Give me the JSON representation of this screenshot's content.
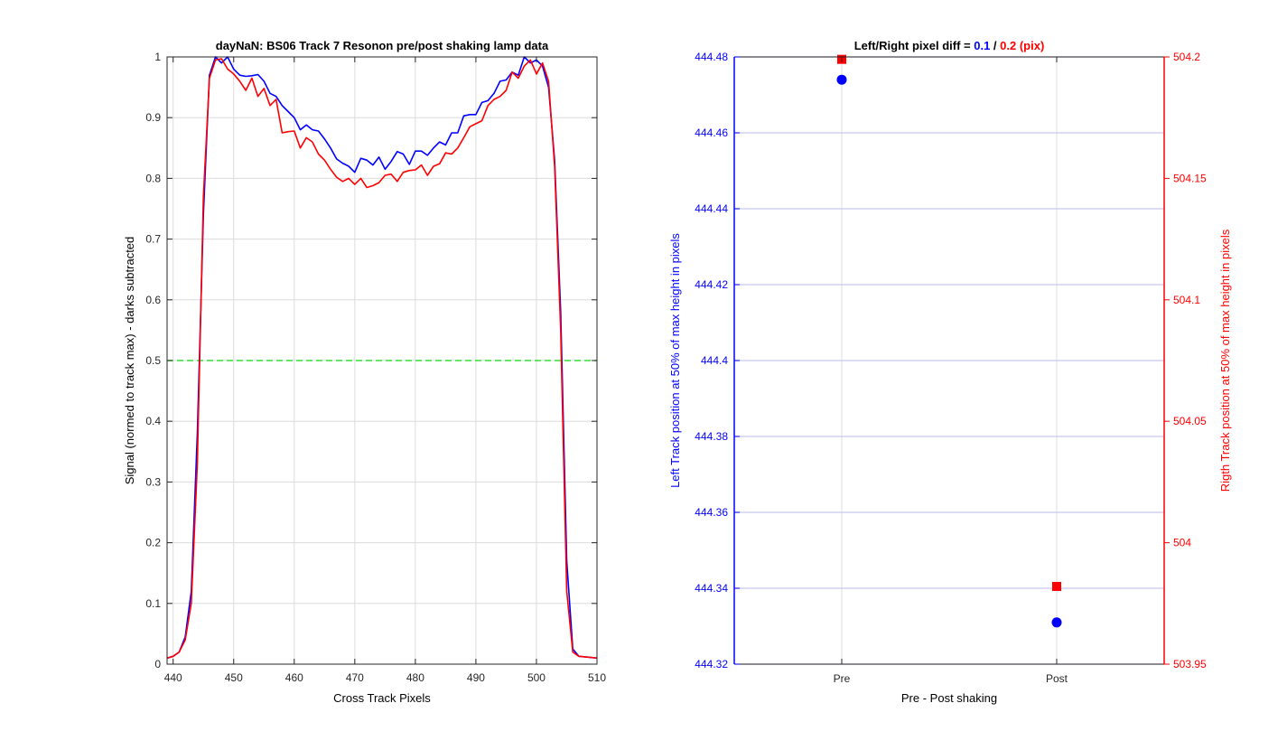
{
  "chart_data": [
    {
      "type": "line",
      "title": "dayNaN: BS06  Track 7 Resonon pre/post shaking lamp data",
      "xlabel": "Cross Track Pixels",
      "ylabel": "Signal (normed to track max) - darks subtracted",
      "xlim": [
        439,
        510
      ],
      "ylim": [
        0,
        1
      ],
      "xticks": [
        "440",
        "450",
        "460",
        "470",
        "480",
        "490",
        "500",
        "510"
      ],
      "yticks": [
        "0",
        "0.1",
        "0.2",
        "0.3",
        "0.4",
        "0.5",
        "0.6",
        "0.7",
        "0.8",
        "0.9",
        "1"
      ],
      "grid": true,
      "reference_line": {
        "y": 0.5,
        "color": "#33dd33",
        "style": "dashed"
      },
      "series": [
        {
          "color": "#0000ff",
          "x": [
            439,
            440,
            441,
            442,
            443,
            444,
            445,
            446,
            447,
            448,
            449,
            450,
            451,
            452,
            453,
            454,
            455,
            456,
            457,
            458,
            459,
            460,
            461,
            462,
            463,
            464,
            465,
            466,
            467,
            468,
            469,
            470,
            471,
            472,
            473,
            474,
            475,
            476,
            477,
            478,
            479,
            480,
            481,
            482,
            483,
            484,
            485,
            486,
            487,
            488,
            489,
            490,
            491,
            492,
            493,
            494,
            495,
            496,
            497,
            498,
            499,
            500,
            501,
            502,
            503,
            504,
            505,
            506,
            507,
            508,
            509,
            510
          ],
          "y": [
            0.01,
            0.013,
            0.02,
            0.045,
            0.12,
            0.38,
            0.74,
            0.97,
            1.0,
            0.99,
            1.0,
            0.98,
            0.97,
            0.968,
            0.969,
            0.971,
            0.96,
            0.94,
            0.935,
            0.92,
            0.91,
            0.9,
            0.88,
            0.888,
            0.88,
            0.878,
            0.865,
            0.85,
            0.832,
            0.825,
            0.82,
            0.81,
            0.833,
            0.83,
            0.822,
            0.835,
            0.815,
            0.828,
            0.844,
            0.84,
            0.823,
            0.845,
            0.845,
            0.838,
            0.85,
            0.86,
            0.855,
            0.875,
            0.875,
            0.903,
            0.905,
            0.905,
            0.925,
            0.928,
            0.94,
            0.96,
            0.962,
            0.975,
            0.97,
            1.0,
            0.99,
            0.995,
            0.985,
            0.95,
            0.83,
            0.58,
            0.17,
            0.025,
            0.013,
            0.012,
            0.011,
            0.01
          ]
        },
        {
          "color": "#ff0000",
          "x": [
            439,
            440,
            441,
            442,
            443,
            444,
            445,
            446,
            447,
            448,
            449,
            450,
            451,
            452,
            453,
            454,
            455,
            456,
            457,
            458,
            459,
            460,
            461,
            462,
            463,
            464,
            465,
            466,
            467,
            468,
            469,
            470,
            471,
            472,
            473,
            474,
            475,
            476,
            477,
            478,
            479,
            480,
            481,
            482,
            483,
            484,
            485,
            486,
            487,
            488,
            489,
            490,
            491,
            492,
            493,
            494,
            495,
            496,
            497,
            498,
            499,
            500,
            501,
            502,
            503,
            504,
            505,
            506,
            507,
            508,
            509,
            510
          ],
          "y": [
            0.01,
            0.013,
            0.02,
            0.04,
            0.1,
            0.33,
            0.77,
            0.965,
            0.995,
            0.997,
            0.98,
            0.972,
            0.96,
            0.945,
            0.965,
            0.935,
            0.948,
            0.92,
            0.93,
            0.875,
            0.877,
            0.878,
            0.85,
            0.867,
            0.86,
            0.84,
            0.83,
            0.815,
            0.802,
            0.795,
            0.8,
            0.79,
            0.8,
            0.785,
            0.788,
            0.793,
            0.805,
            0.807,
            0.795,
            0.81,
            0.813,
            0.814,
            0.822,
            0.805,
            0.82,
            0.824,
            0.842,
            0.84,
            0.85,
            0.867,
            0.885,
            0.89,
            0.895,
            0.92,
            0.93,
            0.935,
            0.945,
            0.975,
            0.965,
            0.985,
            0.995,
            0.972,
            0.99,
            0.96,
            0.82,
            0.55,
            0.12,
            0.02,
            0.013,
            0.012,
            0.011,
            0.01
          ]
        }
      ]
    },
    {
      "type": "scatter",
      "title_prefix": "Left/Right pixel diff = ",
      "title_left": "0.1",
      "title_sep": " / ",
      "title_right": "0.2 (pix)",
      "xlabel": "Pre - Post shaking",
      "categories": [
        "Pre",
        "Post"
      ],
      "ylabel_left": "Left Track position at 50% of max height in pixels",
      "ylabel_right": "Rigth Track position at 50% of max height in pixels",
      "ylim_left": [
        444.32,
        444.48
      ],
      "ylim_right": [
        503.95,
        504.2
      ],
      "yticks_left": [
        "444.32",
        "444.34",
        "444.36",
        "444.38",
        "444.4",
        "444.42",
        "444.44",
        "444.46",
        "444.48"
      ],
      "yticks_right": [
        "503.95",
        "504",
        "504.05",
        "504.1",
        "504.15",
        "504.2"
      ],
      "grid": true,
      "left_color": "#0000ff",
      "right_color": "#ff0000",
      "left_values": [
        444.474,
        444.331
      ],
      "right_values": [
        504.199,
        503.982
      ]
    }
  ]
}
